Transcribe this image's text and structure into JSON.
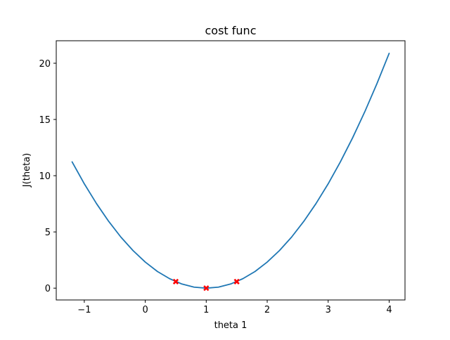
{
  "chart_data": {
    "type": "line",
    "title": "cost func",
    "xlabel": "theta 1",
    "ylabel": "J(theta)",
    "xlim": [
      -1.46,
      4.26
    ],
    "ylim": [
      -1.05,
      22.0
    ],
    "xticks": [
      -1,
      0,
      1,
      2,
      3,
      4
    ],
    "xtick_labels": [
      "−1",
      "0",
      "1",
      "2",
      "3",
      "4"
    ],
    "yticks": [
      0,
      5,
      10,
      15,
      20
    ],
    "ytick_labels": [
      "0",
      "5",
      "10",
      "15",
      "20"
    ],
    "grid": false,
    "series": [
      {
        "kind": "line",
        "color": "#1f77b4",
        "x": [
          -1.2,
          -1.0,
          -0.8,
          -0.6,
          -0.4,
          -0.2,
          0.0,
          0.2,
          0.4,
          0.6,
          0.8,
          1.0,
          1.2,
          1.4,
          1.6,
          1.8,
          2.0,
          2.2,
          2.4,
          2.6,
          2.8,
          3.0,
          3.2,
          3.4,
          3.6,
          3.8,
          4.0
        ],
        "y": [
          11.23,
          9.28,
          7.52,
          5.94,
          4.54,
          3.34,
          2.32,
          1.48,
          0.84,
          0.37,
          0.09,
          0.0,
          0.09,
          0.37,
          0.84,
          1.48,
          2.32,
          3.34,
          4.54,
          5.94,
          7.52,
          9.28,
          11.23,
          13.36,
          15.68,
          18.19,
          20.88
        ]
      },
      {
        "kind": "scatter",
        "marker": "x",
        "color": "#ff0000",
        "x": [
          0.5,
          1.0,
          1.5
        ],
        "y": [
          0.58,
          0.0,
          0.58
        ]
      }
    ]
  }
}
